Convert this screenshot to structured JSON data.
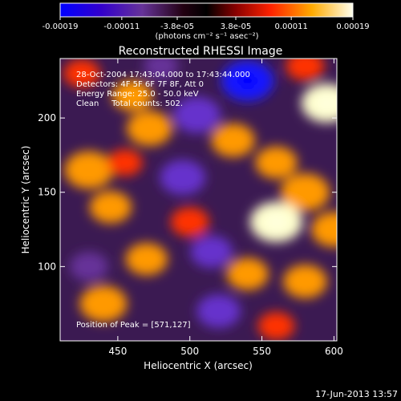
{
  "chart_data": {
    "type": "heatmap",
    "title": "Reconstructed RHESSI Image",
    "xlabel": "Heliocentric X (arcsec)",
    "ylabel": "Heliocentric Y (arcsec)",
    "xlim": [
      410,
      602
    ],
    "ylim": [
      50,
      240
    ],
    "x_ticks": [
      450,
      500,
      550,
      600
    ],
    "y_ticks": [
      100,
      150,
      200
    ],
    "colorbar": {
      "range": [
        -0.00019,
        0.00019
      ],
      "tick_values": [
        -0.00019,
        -0.00011,
        -3.8e-05,
        3.8e-05,
        0.00011,
        0.00019
      ],
      "tick_labels": [
        "-0.00019",
        "-0.00011",
        "-3.8e-05",
        "3.8e-05",
        "0.00011",
        "0.00019"
      ],
      "units": "(photons cm⁻² s⁻¹ asec⁻²)",
      "colormap": [
        "#1a1aff",
        "#6633cc",
        "#663399",
        "#000000",
        "#990000",
        "#ff3300",
        "#ff9900",
        "#ffffcc"
      ]
    },
    "annotations": [
      "28-Oct-2004 17:43:04.000 to 17:43:44.000",
      "Detectors: 4F 5F 6F 7F 8F, Att 0",
      "Energy Range: 25.0 - 50.0 keV",
      "Clean     Total counts: 502."
    ],
    "peak_label": "Position of Peak = [571,127]",
    "features": [
      {
        "x": 460,
        "y": 215,
        "value": 0.00011
      },
      {
        "x": 505,
        "y": 202,
        "value": -0.00015
      },
      {
        "x": 540,
        "y": 225,
        "value": -0.00018
      },
      {
        "x": 595,
        "y": 210,
        "value": 0.00017
      },
      {
        "x": 472,
        "y": 193,
        "value": 0.00014
      },
      {
        "x": 430,
        "y": 165,
        "value": 0.00016
      },
      {
        "x": 445,
        "y": 140,
        "value": 0.00012
      },
      {
        "x": 495,
        "y": 160,
        "value": -0.00014
      },
      {
        "x": 530,
        "y": 185,
        "value": 0.00013
      },
      {
        "x": 560,
        "y": 170,
        "value": 0.00012
      },
      {
        "x": 580,
        "y": 150,
        "value": 0.00016
      },
      {
        "x": 560,
        "y": 130,
        "value": 0.00018
      },
      {
        "x": 600,
        "y": 125,
        "value": 0.00014
      },
      {
        "x": 470,
        "y": 105,
        "value": 0.00012
      },
      {
        "x": 500,
        "y": 130,
        "value": 0.0001
      },
      {
        "x": 515,
        "y": 110,
        "value": -0.00012
      },
      {
        "x": 540,
        "y": 95,
        "value": 0.00012
      },
      {
        "x": 580,
        "y": 90,
        "value": 0.00013
      },
      {
        "x": 440,
        "y": 75,
        "value": 0.00015
      },
      {
        "x": 520,
        "y": 70,
        "value": -0.00013
      },
      {
        "x": 560,
        "y": 60,
        "value": 9e-05
      },
      {
        "x": 425,
        "y": 230,
        "value": 9e-05
      },
      {
        "x": 480,
        "y": 235,
        "value": -8e-05
      },
      {
        "x": 580,
        "y": 235,
        "value": 0.0001
      },
      {
        "x": 455,
        "y": 170,
        "value": 8e-05
      },
      {
        "x": 430,
        "y": 100,
        "value": -0.0001
      }
    ]
  },
  "footer": {
    "timestamp": "17-Jun-2013 13:57"
  }
}
